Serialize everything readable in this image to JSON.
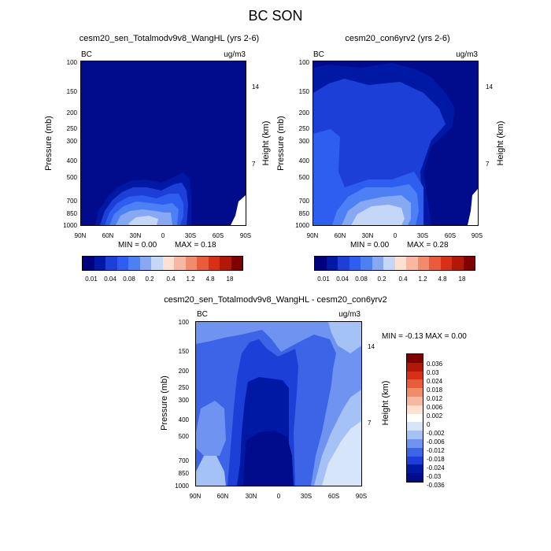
{
  "figure_title": "BC SON",
  "colors": {
    "main_scale": [
      "#00007f",
      "#0019a5",
      "#1c3fd8",
      "#2e5ef0",
      "#4d7ff5",
      "#87a9f4",
      "#c4d7f7",
      "#fde0d0",
      "#f7b7a0",
      "#f08c6c",
      "#e85b3b",
      "#d73017",
      "#b21807",
      "#800000"
    ],
    "diff_scale": [
      "#800000",
      "#b21807",
      "#d73017",
      "#e85b3b",
      "#f08c6c",
      "#f7b7a0",
      "#fde0d0",
      "#ffffff",
      "#d7e5fb",
      "#a5c2f7",
      "#6f93f0",
      "#3d63e6",
      "#1c3fd8",
      "#0019a5",
      "#000c8c"
    ]
  },
  "chart_data": [
    {
      "type": "heatmap",
      "title": "cesm20_sen_Totalmodv9v8_WangHL (yrs 2-6)",
      "left_label": "BC",
      "right_label": "ug/m3",
      "ylabel": "Pressure (mb)",
      "y2label": "Height (km)",
      "x_ticks": [
        "90N",
        "60N",
        "30N",
        "0",
        "30S",
        "60S",
        "90S"
      ],
      "y_ticks": [
        "100",
        "150",
        "200",
        "250",
        "300",
        "400",
        "500",
        "700",
        "850",
        "1000"
      ],
      "y2_ticks": [
        "14",
        "7"
      ],
      "ylim": [
        1000,
        100
      ],
      "min_text": "MIN =   0.00",
      "max_text": "MAX =   0.18",
      "min": 0.0,
      "max": 0.18,
      "colorbar_labels": [
        "0.01",
        "0.04",
        "0.08",
        "0.2",
        "0.4",
        "1.2",
        "4.8",
        "18"
      ]
    },
    {
      "type": "heatmap",
      "title": "cesm20_con6yrv2 (yrs 2-6)",
      "left_label": "BC",
      "right_label": "ug/m3",
      "ylabel": "Pressure (mb)",
      "y2label": "Height (km)",
      "x_ticks": [
        "90N",
        "60N",
        "30N",
        "0",
        "30S",
        "60S",
        "90S"
      ],
      "y_ticks": [
        "100",
        "150",
        "200",
        "250",
        "300",
        "400",
        "500",
        "700",
        "850",
        "1000"
      ],
      "y2_ticks": [
        "14",
        "7"
      ],
      "ylim": [
        1000,
        100
      ],
      "min_text": "MIN =   0.00",
      "max_text": "MAX =   0.28",
      "min": 0.0,
      "max": 0.28,
      "colorbar_labels": [
        "0.01",
        "0.04",
        "0.08",
        "0.2",
        "0.4",
        "1.2",
        "4.8",
        "18"
      ]
    },
    {
      "type": "heatmap",
      "title": "cesm20_sen_Totalmodv9v8_WangHL - cesm20_con6yrv2",
      "left_label": "BC",
      "right_label": "ug/m3",
      "ylabel": "Pressure (mb)",
      "y2label": "Height (km)",
      "x_ticks": [
        "90N",
        "60N",
        "30N",
        "0",
        "30S",
        "60S",
        "90S"
      ],
      "y_ticks": [
        "100",
        "150",
        "200",
        "250",
        "300",
        "400",
        "500",
        "700",
        "850",
        "1000"
      ],
      "y2_ticks": [
        "14",
        "7"
      ],
      "ylim": [
        1000,
        100
      ],
      "minmax_text": "MIN =  -0.13  MAX =   0.00",
      "min": -0.13,
      "max": 0.0,
      "colorbar_labels": [
        "0.036",
        "0.03",
        "0.024",
        "0.018",
        "0.012",
        "0.006",
        "0.002",
        "0",
        "-0.002",
        "-0.006",
        "-0.012",
        "-0.018",
        "-0.024",
        "-0.03",
        "-0.036"
      ]
    }
  ]
}
